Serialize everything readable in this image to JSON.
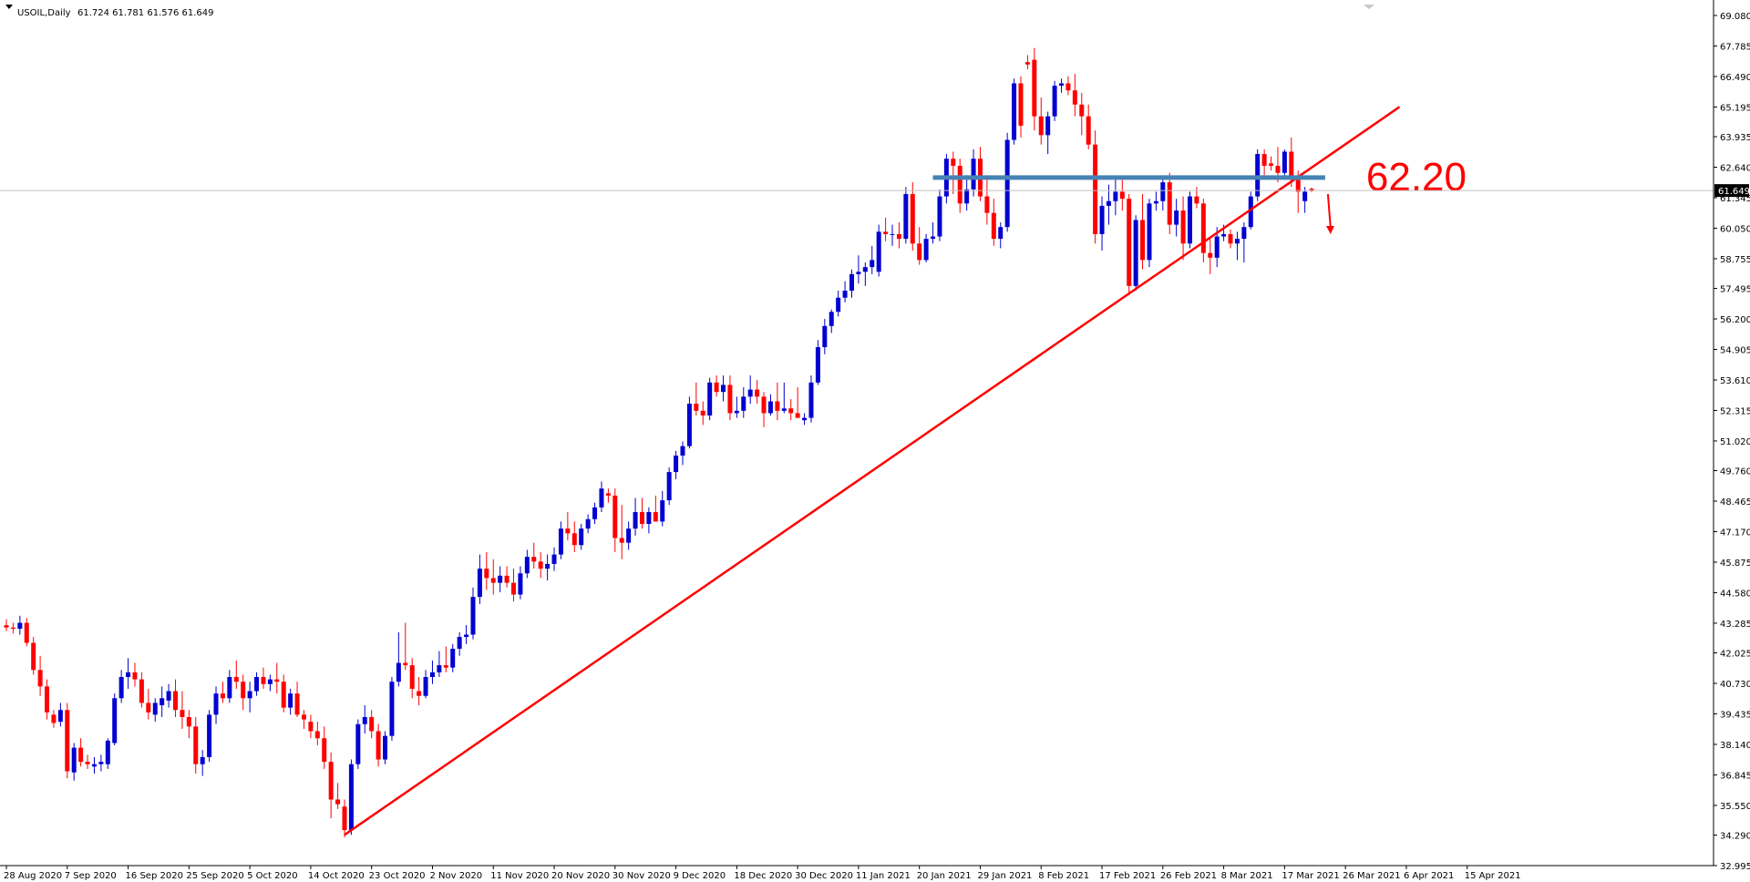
{
  "window": {
    "symbol_header": "USOIL,Daily",
    "ohlc_header": "61.724 61.781 61.576 61.649"
  },
  "chart_data": {
    "type": "candlestick",
    "title": "USOIL,Daily",
    "ohlc_header": "61.724 61.781 61.576 61.649",
    "y_ticks": [
      "69.080",
      "67.785",
      "66.490",
      "65.195",
      "63.935",
      "62.640",
      "61.345",
      "60.050",
      "58.755",
      "57.495",
      "56.200",
      "54.905",
      "53.610",
      "52.315",
      "51.020",
      "49.760",
      "48.465",
      "47.170",
      "45.875",
      "44.580",
      "43.285",
      "42.025",
      "40.730",
      "39.435",
      "38.140",
      "36.845",
      "35.550",
      "34.290",
      "32.995"
    ],
    "ylim": [
      32.995,
      69.08
    ],
    "x_ticks": [
      "28 Aug 2020",
      "7 Sep 2020",
      "16 Sep 2020",
      "25 Sep 2020",
      "5 Oct 2020",
      "14 Oct 2020",
      "23 Oct 2020",
      "2 Nov 2020",
      "11 Nov 2020",
      "20 Nov 2020",
      "30 Nov 2020",
      "9 Dec 2020",
      "18 Dec 2020",
      "30 Dec 2020",
      "11 Jan 2021",
      "20 Jan 2021",
      "29 Jan 2021",
      "8 Feb 2021",
      "17 Feb 2021",
      "26 Feb 2021",
      "8 Mar 2021",
      "17 Mar 2021",
      "26 Mar 2021",
      "6 Apr 2021",
      "15 Apr 2021"
    ],
    "current_price": 61.649,
    "current_price_label": "61.649",
    "grid": false,
    "colors": {
      "bull": "#0000d0",
      "bear": "#ff0000",
      "background": "#ffffff",
      "resistance": "#4682b4",
      "trendline": "#ff0000"
    },
    "candles": [
      [
        43.2,
        43.45,
        42.95,
        43.1
      ],
      [
        43.1,
        43.3,
        42.85,
        43.05
      ],
      [
        43.05,
        43.6,
        42.8,
        43.3
      ],
      [
        43.3,
        43.5,
        42.3,
        42.45
      ],
      [
        42.45,
        42.7,
        41.1,
        41.3
      ],
      [
        41.3,
        41.9,
        40.2,
        40.6
      ],
      [
        40.6,
        40.9,
        39.2,
        39.5
      ],
      [
        39.4,
        39.6,
        38.85,
        39.05
      ],
      [
        39.1,
        39.9,
        38.9,
        39.6
      ],
      [
        39.6,
        39.9,
        36.7,
        37.0
      ],
      [
        36.95,
        38.2,
        36.6,
        38.0
      ],
      [
        38.0,
        38.4,
        37.2,
        37.4
      ],
      [
        37.4,
        37.7,
        37.1,
        37.3
      ],
      [
        37.2,
        37.6,
        36.9,
        37.3
      ],
      [
        37.3,
        37.7,
        37.0,
        37.4
      ],
      [
        37.3,
        38.4,
        37.1,
        38.3
      ],
      [
        38.2,
        40.3,
        38.1,
        40.1
      ],
      [
        40.1,
        41.3,
        39.9,
        41.0
      ],
      [
        41.0,
        41.8,
        40.5,
        41.2
      ],
      [
        41.2,
        41.6,
        40.6,
        40.9
      ],
      [
        40.9,
        41.2,
        39.7,
        39.9
      ],
      [
        39.9,
        40.5,
        39.2,
        39.5
      ],
      [
        39.4,
        40.1,
        39.1,
        39.9
      ],
      [
        39.8,
        40.6,
        39.3,
        40.1
      ],
      [
        40.0,
        40.7,
        39.7,
        40.4
      ],
      [
        40.4,
        40.9,
        39.3,
        39.6
      ],
      [
        39.6,
        40.4,
        38.8,
        39.3
      ],
      [
        39.3,
        39.6,
        38.4,
        38.9
      ],
      [
        38.9,
        39.3,
        36.9,
        37.3
      ],
      [
        37.3,
        37.9,
        36.8,
        37.6
      ],
      [
        37.6,
        39.6,
        37.4,
        39.4
      ],
      [
        39.4,
        40.6,
        39.0,
        40.3
      ],
      [
        40.3,
        40.8,
        39.9,
        40.1
      ],
      [
        40.1,
        41.3,
        39.9,
        41.0
      ],
      [
        41.0,
        41.7,
        40.5,
        40.8
      ],
      [
        40.8,
        41.1,
        39.6,
        40.1
      ],
      [
        40.1,
        40.8,
        39.5,
        40.4
      ],
      [
        40.4,
        41.2,
        40.2,
        41.0
      ],
      [
        41.0,
        41.4,
        40.5,
        40.7
      ],
      [
        40.7,
        41.1,
        40.4,
        40.9
      ],
      [
        40.9,
        41.6,
        40.3,
        40.8
      ],
      [
        40.8,
        41.1,
        39.5,
        39.7
      ],
      [
        39.7,
        40.5,
        39.4,
        40.3
      ],
      [
        40.3,
        40.8,
        39.3,
        39.4
      ],
      [
        39.4,
        39.6,
        38.8,
        39.2
      ],
      [
        39.1,
        39.4,
        38.4,
        38.7
      ],
      [
        38.7,
        39.1,
        38.1,
        38.4
      ],
      [
        38.4,
        38.9,
        37.1,
        37.4
      ],
      [
        37.4,
        37.8,
        35.0,
        35.8
      ],
      [
        35.8,
        36.5,
        35.4,
        35.6
      ],
      [
        35.5,
        35.8,
        34.2,
        34.5
      ],
      [
        34.5,
        37.5,
        34.3,
        37.3
      ],
      [
        37.3,
        39.2,
        37.1,
        39.0
      ],
      [
        39.0,
        39.8,
        38.6,
        39.3
      ],
      [
        39.3,
        39.6,
        38.4,
        38.7
      ],
      [
        38.7,
        39.0,
        37.2,
        37.5
      ],
      [
        37.5,
        38.7,
        37.3,
        38.5
      ],
      [
        38.5,
        41.0,
        38.3,
        40.8
      ],
      [
        40.8,
        42.9,
        40.6,
        41.6
      ],
      [
        41.6,
        43.3,
        41.3,
        41.5
      ],
      [
        41.5,
        41.8,
        40.1,
        40.5
      ],
      [
        40.4,
        41.0,
        39.8,
        40.2
      ],
      [
        40.2,
        41.3,
        40.1,
        41.0
      ],
      [
        41.0,
        41.7,
        40.7,
        41.2
      ],
      [
        41.2,
        42.1,
        41.0,
        41.5
      ],
      [
        41.5,
        42.3,
        41.2,
        41.4
      ],
      [
        41.4,
        42.4,
        41.2,
        42.2
      ],
      [
        42.2,
        42.9,
        41.9,
        42.7
      ],
      [
        42.7,
        43.2,
        42.4,
        42.8
      ],
      [
        42.8,
        44.8,
        42.6,
        44.4
      ],
      [
        44.4,
        46.2,
        44.1,
        45.6
      ],
      [
        45.6,
        46.3,
        44.7,
        45.2
      ],
      [
        45.2,
        46.0,
        44.5,
        45.0
      ],
      [
        45.0,
        45.7,
        44.6,
        45.3
      ],
      [
        45.3,
        45.7,
        44.8,
        45.0
      ],
      [
        45.0,
        45.6,
        44.2,
        44.5
      ],
      [
        44.5,
        45.7,
        44.3,
        45.4
      ],
      [
        45.4,
        46.4,
        45.2,
        46.1
      ],
      [
        46.1,
        46.7,
        45.6,
        45.9
      ],
      [
        45.9,
        46.3,
        45.2,
        45.6
      ],
      [
        45.6,
        46.2,
        45.1,
        45.8
      ],
      [
        45.8,
        46.5,
        45.5,
        46.2
      ],
      [
        46.2,
        47.6,
        46.0,
        47.3
      ],
      [
        47.3,
        48.0,
        46.8,
        47.1
      ],
      [
        47.1,
        47.6,
        46.3,
        46.6
      ],
      [
        46.6,
        47.5,
        46.4,
        47.3
      ],
      [
        47.3,
        47.9,
        47.1,
        47.7
      ],
      [
        47.7,
        48.4,
        47.5,
        48.2
      ],
      [
        48.2,
        49.3,
        48.0,
        49.0
      ],
      [
        48.8,
        49.0,
        48.4,
        48.7
      ],
      [
        48.7,
        49.0,
        46.3,
        46.9
      ],
      [
        46.9,
        48.3,
        46.0,
        46.7
      ],
      [
        46.7,
        47.6,
        46.4,
        47.3
      ],
      [
        47.3,
        48.6,
        47.0,
        48.0
      ],
      [
        48.0,
        48.6,
        47.3,
        47.5
      ],
      [
        47.5,
        48.2,
        47.1,
        48.0
      ],
      [
        48.0,
        48.7,
        47.6,
        47.6
      ],
      [
        47.6,
        48.9,
        47.4,
        48.5
      ],
      [
        48.5,
        49.9,
        48.3,
        49.7
      ],
      [
        49.7,
        50.6,
        49.4,
        50.4
      ],
      [
        50.4,
        51.0,
        50.0,
        50.8
      ],
      [
        50.8,
        52.9,
        50.7,
        52.6
      ],
      [
        52.6,
        53.5,
        52.1,
        52.3
      ],
      [
        52.3,
        52.7,
        51.7,
        52.1
      ],
      [
        52.1,
        53.7,
        51.9,
        53.5
      ],
      [
        53.5,
        53.8,
        52.9,
        53.1
      ],
      [
        53.1,
        53.8,
        52.7,
        53.4
      ],
      [
        53.4,
        53.8,
        51.9,
        52.2
      ],
      [
        52.2,
        52.9,
        52.0,
        52.3
      ],
      [
        52.3,
        53.3,
        52.0,
        52.9
      ],
      [
        52.9,
        53.8,
        52.6,
        53.2
      ],
      [
        53.2,
        53.6,
        52.6,
        52.9
      ],
      [
        52.9,
        53.1,
        51.6,
        52.2
      ],
      [
        52.2,
        53.0,
        52.1,
        52.7
      ],
      [
        52.7,
        53.5,
        51.9,
        52.3
      ],
      [
        52.3,
        53.5,
        52.2,
        52.4
      ],
      [
        52.4,
        52.8,
        51.9,
        52.2
      ],
      [
        52.2,
        53.3,
        52.0,
        52.0
      ],
      [
        51.9,
        52.2,
        51.7,
        52.0
      ],
      [
        52.0,
        53.8,
        51.8,
        53.5
      ],
      [
        53.5,
        55.3,
        53.4,
        55.0
      ],
      [
        55.0,
        56.2,
        54.7,
        55.9
      ],
      [
        55.9,
        56.6,
        55.6,
        56.5
      ],
      [
        56.5,
        57.4,
        56.3,
        57.1
      ],
      [
        57.1,
        57.8,
        56.9,
        57.4
      ],
      [
        57.4,
        58.3,
        57.1,
        58.1
      ],
      [
        58.1,
        58.9,
        57.7,
        58.2
      ],
      [
        58.2,
        58.6,
        57.6,
        58.4
      ],
      [
        58.4,
        59.3,
        58.1,
        58.7
      ],
      [
        58.2,
        60.2,
        58.0,
        59.9
      ],
      [
        59.9,
        60.5,
        59.5,
        59.8
      ],
      [
        59.8,
        60.2,
        59.3,
        59.8
      ],
      [
        59.8,
        60.3,
        59.2,
        59.6
      ],
      [
        59.6,
        61.8,
        59.4,
        61.5
      ],
      [
        61.5,
        62.0,
        59.1,
        59.4
      ],
      [
        59.4,
        60.1,
        58.5,
        58.7
      ],
      [
        58.7,
        59.8,
        58.6,
        59.6
      ],
      [
        59.6,
        60.3,
        59.4,
        59.7
      ],
      [
        59.7,
        61.7,
        59.5,
        61.4
      ],
      [
        61.4,
        63.2,
        61.1,
        63.0
      ],
      [
        63.0,
        63.3,
        61.5,
        62.7
      ],
      [
        62.7,
        63.0,
        60.7,
        61.1
      ],
      [
        61.1,
        62.3,
        60.8,
        61.7
      ],
      [
        61.7,
        63.4,
        61.4,
        63.0
      ],
      [
        63.0,
        63.5,
        61.2,
        61.4
      ],
      [
        61.4,
        62.3,
        60.2,
        60.7
      ],
      [
        60.7,
        61.3,
        59.3,
        59.6
      ],
      [
        59.6,
        60.3,
        59.2,
        60.1
      ],
      [
        60.1,
        64.1,
        59.9,
        63.8
      ],
      [
        63.8,
        66.4,
        63.6,
        66.2
      ],
      [
        66.2,
        66.5,
        63.9,
        64.4
      ],
      [
        67.1,
        67.4,
        66.8,
        67.0
      ],
      [
        67.2,
        67.7,
        64.2,
        64.8
      ],
      [
        64.8,
        65.6,
        63.6,
        64.0
      ],
      [
        64.0,
        65.0,
        63.2,
        64.8
      ],
      [
        64.8,
        66.3,
        64.6,
        66.1
      ],
      [
        66.1,
        66.4,
        65.8,
        66.2
      ],
      [
        66.2,
        66.5,
        65.7,
        65.9
      ],
      [
        65.9,
        66.6,
        64.8,
        65.3
      ],
      [
        65.3,
        65.8,
        64.0,
        64.8
      ],
      [
        64.8,
        65.3,
        63.4,
        63.6
      ],
      [
        63.6,
        64.2,
        59.4,
        59.8
      ],
      [
        59.8,
        61.4,
        59.1,
        61.0
      ],
      [
        61.0,
        61.9,
        60.2,
        61.2
      ],
      [
        61.2,
        62.2,
        60.6,
        61.6
      ],
      [
        61.6,
        62.1,
        60.8,
        61.3
      ],
      [
        61.3,
        61.5,
        57.2,
        57.6
      ],
      [
        57.6,
        60.6,
        57.4,
        60.4
      ],
      [
        60.4,
        61.5,
        58.3,
        58.7
      ],
      [
        58.7,
        61.3,
        58.4,
        61.1
      ],
      [
        61.1,
        61.6,
        60.8,
        61.2
      ],
      [
        61.2,
        62.3,
        60.8,
        62.0
      ],
      [
        62.0,
        62.4,
        59.8,
        60.2
      ],
      [
        60.2,
        61.3,
        59.7,
        60.8
      ],
      [
        60.8,
        61.4,
        58.7,
        59.4
      ],
      [
        59.4,
        61.6,
        59.2,
        61.4
      ],
      [
        61.4,
        61.8,
        60.9,
        61.1
      ],
      [
        61.1,
        61.3,
        58.6,
        59.0
      ],
      [
        59.0,
        59.6,
        58.1,
        58.8
      ],
      [
        58.8,
        60.1,
        58.4,
        59.7
      ],
      [
        59.7,
        60.2,
        59.5,
        59.8
      ],
      [
        59.8,
        60.0,
        59.2,
        59.4
      ],
      [
        59.4,
        59.9,
        58.7,
        59.6
      ],
      [
        59.6,
        60.3,
        58.6,
        60.1
      ],
      [
        60.1,
        61.6,
        60.0,
        61.4
      ],
      [
        61.4,
        63.4,
        61.2,
        63.2
      ],
      [
        63.2,
        63.4,
        62.3,
        62.7
      ],
      [
        62.8,
        63.1,
        62.5,
        62.7
      ],
      [
        62.7,
        63.5,
        62.0,
        62.4
      ],
      [
        62.4,
        63.4,
        62.2,
        63.3
      ],
      [
        63.3,
        63.9,
        61.8,
        62.1
      ],
      [
        62.1,
        62.5,
        60.7,
        61.6
      ],
      [
        61.2,
        61.8,
        60.7,
        61.6
      ],
      [
        61.72,
        61.78,
        61.58,
        61.65
      ]
    ],
    "annotations": {
      "resistance_level": 62.2,
      "resistance_label": "62.20",
      "trendline_start": {
        "candle_index": 50,
        "price": 34.3
      },
      "trendline_end": {
        "candle_index": 206,
        "price": 65.2
      },
      "arrow_from_price": 61.5,
      "arrow_to_price": 59.8
    }
  }
}
